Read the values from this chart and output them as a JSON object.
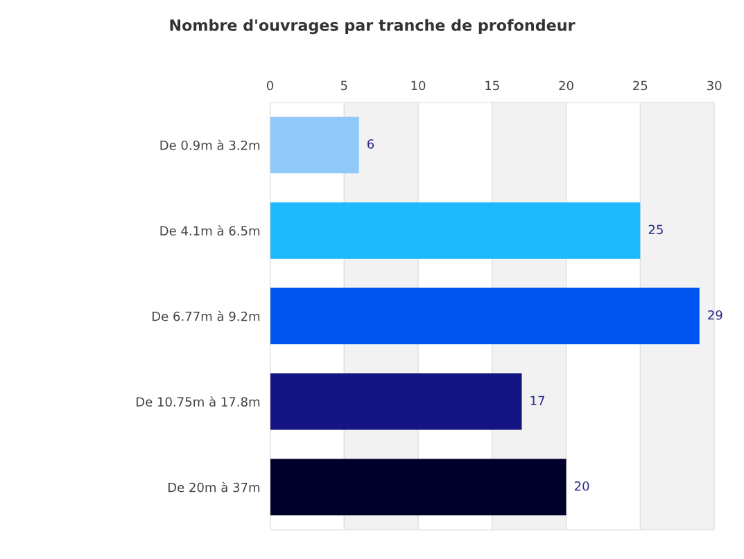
{
  "chart_data": {
    "type": "bar",
    "orientation": "horizontal",
    "title": "Nombre d'ouvrages par tranche de profondeur",
    "categories": [
      "De 0.9m à 3.2m",
      "De 4.1m à 6.5m",
      "De 6.77m à 9.2m",
      "De 10.75m à 17.8m",
      "De 20m à 37m"
    ],
    "values": [
      6,
      25,
      29,
      17,
      20
    ],
    "colors": [
      "#90c8f8",
      "#1eb8fc",
      "#0055f0",
      "#141482",
      "#00002a"
    ],
    "xlim": [
      0,
      30
    ],
    "xticks": [
      0,
      5,
      10,
      15,
      20,
      25,
      30
    ],
    "bands": [
      {
        "axis": "x",
        "from": 5,
        "to": 10,
        "color": "#f2f2f2"
      },
      {
        "axis": "x",
        "from": 15,
        "to": 20,
        "color": "#f2f2f2"
      },
      {
        "axis": "x",
        "from": 25,
        "to": 30,
        "color": "#f2f2f2"
      }
    ],
    "grid": "x",
    "data_labels": true,
    "legend": false
  }
}
